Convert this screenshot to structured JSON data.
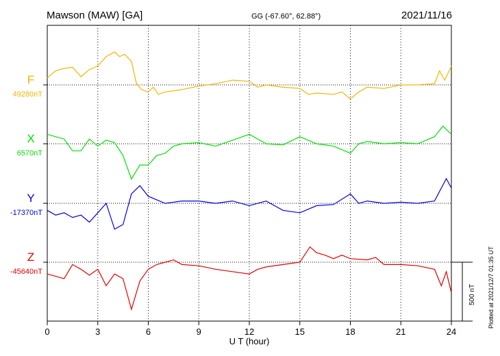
{
  "header": {
    "station": "Mawson (MAW)  [GA]",
    "coords": "GG (-67.60°,  62.88°)",
    "date": "2021/11/16"
  },
  "plotted_note": "Plotted at 2021/12/7 01:35 UT",
  "chart_data": {
    "type": "line",
    "xlabel": "U T (hour)",
    "xlim": [
      0,
      24
    ],
    "xticks": [
      "0",
      "3",
      "6",
      "9",
      "12",
      "15",
      "18",
      "21",
      "24"
    ],
    "scale_bar_label": "500 nT",
    "scale_bar_nT": 500,
    "series": [
      {
        "name": "F",
        "baseline_label": "49280nT",
        "baseline_nT": 49280,
        "color": "#f2b600",
        "points": [
          [
            0,
            60
          ],
          [
            0.5,
            120
          ],
          [
            1,
            140
          ],
          [
            1.5,
            150
          ],
          [
            2,
            70
          ],
          [
            2.5,
            130
          ],
          [
            3,
            160
          ],
          [
            3.5,
            240
          ],
          [
            4,
            280
          ],
          [
            4.3,
            240
          ],
          [
            4.6,
            260
          ],
          [
            5,
            200
          ],
          [
            5.3,
            10
          ],
          [
            5.6,
            -40
          ],
          [
            6,
            -60
          ],
          [
            6.3,
            -20
          ],
          [
            6.6,
            -80
          ],
          [
            7,
            -60
          ],
          [
            7.5,
            -50
          ],
          [
            8,
            -40
          ],
          [
            9,
            -10
          ],
          [
            10,
            10
          ],
          [
            11,
            40
          ],
          [
            12,
            30
          ],
          [
            12.5,
            -20
          ],
          [
            13,
            0
          ],
          [
            14,
            -20
          ],
          [
            15,
            -30
          ],
          [
            15.5,
            -80
          ],
          [
            16,
            -70
          ],
          [
            17,
            -80
          ],
          [
            17.5,
            -60
          ],
          [
            18,
            -120
          ],
          [
            18.5,
            -60
          ],
          [
            19,
            -20
          ],
          [
            20,
            -30
          ],
          [
            21,
            0
          ],
          [
            22,
            0
          ],
          [
            23,
            10
          ],
          [
            23.3,
            120
          ],
          [
            23.6,
            40
          ],
          [
            24,
            160
          ]
        ]
      },
      {
        "name": "X",
        "baseline_label": "6570nT",
        "baseline_nT": 6570,
        "color": "#00e000",
        "points": [
          [
            0,
            80
          ],
          [
            0.5,
            60
          ],
          [
            1,
            40
          ],
          [
            1.5,
            -60
          ],
          [
            2,
            -60
          ],
          [
            2.5,
            40
          ],
          [
            3,
            -20
          ],
          [
            3.5,
            30
          ],
          [
            4,
            10
          ],
          [
            4.5,
            -100
          ],
          [
            5,
            -300
          ],
          [
            5.5,
            -180
          ],
          [
            6,
            -180
          ],
          [
            6.5,
            -100
          ],
          [
            7,
            -80
          ],
          [
            7.5,
            -20
          ],
          [
            8,
            0
          ],
          [
            9,
            10
          ],
          [
            10,
            -20
          ],
          [
            11,
            30
          ],
          [
            12,
            80
          ],
          [
            12.5,
            40
          ],
          [
            13,
            0
          ],
          [
            14,
            -10
          ],
          [
            15,
            60
          ],
          [
            16,
            0
          ],
          [
            17,
            -20
          ],
          [
            18,
            -80
          ],
          [
            18.5,
            0
          ],
          [
            19,
            20
          ],
          [
            20,
            0
          ],
          [
            21,
            10
          ],
          [
            22,
            0
          ],
          [
            23,
            60
          ],
          [
            23.5,
            150
          ],
          [
            24,
            80
          ]
        ]
      },
      {
        "name": "Y",
        "baseline_label": "-17370nT",
        "baseline_nT": -17370,
        "color": "#0000e0",
        "points": [
          [
            0,
            -60
          ],
          [
            0.5,
            -100
          ],
          [
            1,
            -80
          ],
          [
            1.5,
            -120
          ],
          [
            2,
            -100
          ],
          [
            2.5,
            -160
          ],
          [
            3,
            -80
          ],
          [
            3.5,
            0
          ],
          [
            4,
            -220
          ],
          [
            4.5,
            -180
          ],
          [
            5,
            80
          ],
          [
            5.5,
            150
          ],
          [
            6,
            60
          ],
          [
            7,
            0
          ],
          [
            8,
            20
          ],
          [
            9,
            20
          ],
          [
            10,
            0
          ],
          [
            11,
            20
          ],
          [
            12,
            -20
          ],
          [
            13,
            20
          ],
          [
            14,
            -60
          ],
          [
            15,
            -80
          ],
          [
            16,
            -20
          ],
          [
            17,
            -10
          ],
          [
            18,
            80
          ],
          [
            18.5,
            0
          ],
          [
            19,
            20
          ],
          [
            20,
            0
          ],
          [
            21,
            10
          ],
          [
            22,
            0
          ],
          [
            23,
            20
          ],
          [
            23.7,
            210
          ],
          [
            24,
            130
          ]
        ]
      },
      {
        "name": "Z",
        "baseline_label": "-45640nT",
        "baseline_nT": -45640,
        "color": "#e00000",
        "points": [
          [
            0,
            -100
          ],
          [
            0.5,
            -120
          ],
          [
            1,
            -140
          ],
          [
            1.5,
            -20
          ],
          [
            2,
            -60
          ],
          [
            2.5,
            -110
          ],
          [
            3,
            -60
          ],
          [
            3.5,
            -200
          ],
          [
            4,
            -100
          ],
          [
            4.5,
            -140
          ],
          [
            5,
            -400
          ],
          [
            5.5,
            -160
          ],
          [
            6,
            -60
          ],
          [
            6.5,
            -20
          ],
          [
            7,
            0
          ],
          [
            7.5,
            20
          ],
          [
            8,
            -20
          ],
          [
            9,
            -30
          ],
          [
            10,
            -60
          ],
          [
            11,
            -80
          ],
          [
            12,
            -100
          ],
          [
            12.5,
            -60
          ],
          [
            13,
            -40
          ],
          [
            14,
            -20
          ],
          [
            15,
            0
          ],
          [
            15.6,
            130
          ],
          [
            16,
            80
          ],
          [
            16.5,
            60
          ],
          [
            17,
            30
          ],
          [
            17.5,
            60
          ],
          [
            18,
            30
          ],
          [
            19,
            20
          ],
          [
            19.5,
            40
          ],
          [
            20,
            -20
          ],
          [
            21,
            -20
          ],
          [
            22,
            -30
          ],
          [
            23,
            -60
          ],
          [
            23.4,
            -200
          ],
          [
            23.7,
            -80
          ],
          [
            24,
            -260
          ]
        ]
      }
    ]
  }
}
